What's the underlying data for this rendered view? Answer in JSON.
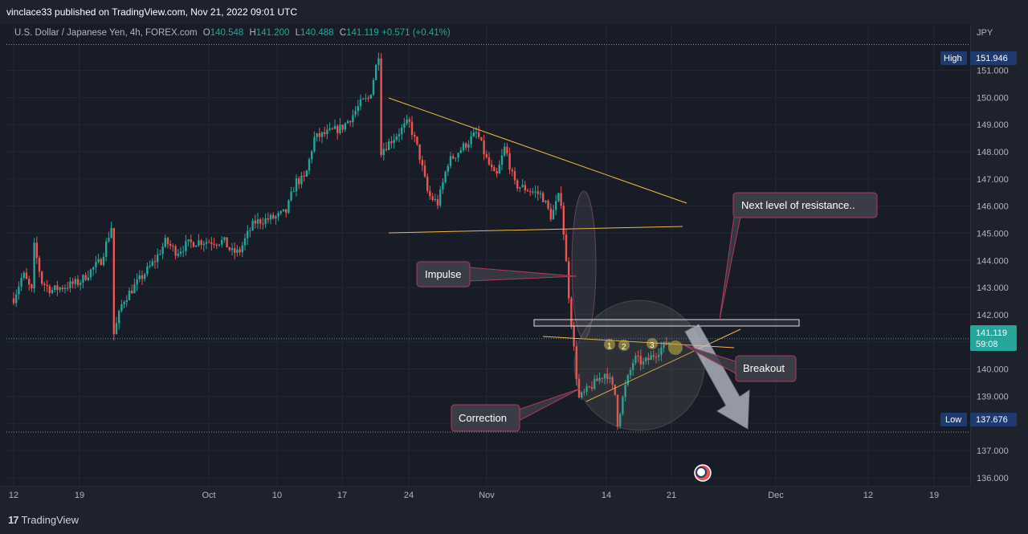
{
  "header": {
    "publisher": "vinclace33 published on TradingView.com, Nov 21, 2022 09:01 UTC"
  },
  "legend": {
    "symbol": "U.S. Dollar / Japanese Yen, 4h, FOREX.com",
    "open_key": "O",
    "open": "140.548",
    "high_key": "H",
    "high": "141.200",
    "low_key": "L",
    "low": "140.488",
    "close_key": "C",
    "close": "141.119",
    "change": "+0.571 (+0.41%)"
  },
  "currency": "JPY",
  "footer": {
    "brand": "TradingView",
    "brand_mark": "17"
  },
  "badges": {
    "high_label": "High",
    "high_value": "151.946",
    "low_label": "Low",
    "low_value": "137.676",
    "last_price": "141.119",
    "countdown": "59:08"
  },
  "annotations": {
    "resistance": "Next level of resistance..",
    "impulse": "Impulse",
    "breakout": "Breakout",
    "correction": "Correction",
    "wave_labels": [
      "1",
      "2",
      "3"
    ]
  },
  "colors": {
    "up": "#26a69a",
    "down": "#ef5350",
    "trendline": "#f5b942",
    "callout_border": "#b03a5a",
    "callout_bg": "#3a3d48",
    "badge_blue": "#1e3a6e",
    "last_green": "#26a69a"
  },
  "chart_data": {
    "type": "candlestick",
    "title": "U.S. Dollar / Japanese Yen, 4h, FOREX.com",
    "y_ticks": [
      "151.000",
      "150.000",
      "149.000",
      "148.000",
      "147.000",
      "146.000",
      "145.000",
      "144.000",
      "143.000",
      "142.000",
      "141.000",
      "140.000",
      "139.000",
      "138.000",
      "137.000",
      "136.000"
    ],
    "y_tick_values": [
      151,
      150,
      149,
      148,
      147,
      146,
      145,
      144,
      143,
      142,
      141,
      140,
      139,
      138,
      137,
      136
    ],
    "x_ticks": [
      "12",
      "19",
      "Oct",
      "10",
      "17",
      "24",
      "Nov",
      "14",
      "21",
      "Dec",
      "12",
      "19"
    ],
    "x_tick_dates": [
      "2022-09-12",
      "2022-09-19",
      "2022-10-01",
      "2022-10-10",
      "2022-10-17",
      "2022-10-24",
      "2022-11-01",
      "2022-11-14",
      "2022-11-21",
      "2022-12-01",
      "2022-12-12",
      "2022-12-19"
    ],
    "ylim": [
      135.7,
      152.7
    ],
    "high": 151.946,
    "low": 137.676,
    "last": 141.119,
    "path": [
      [
        "2022-09-12",
        142.6
      ],
      [
        "2022-09-13",
        143.5
      ],
      [
        "2022-09-14",
        142.8
      ],
      [
        "2022-09-14",
        144.8
      ],
      [
        "2022-09-15",
        143.2
      ],
      [
        "2022-09-16",
        142.9
      ],
      [
        "2022-09-19",
        143.2
      ],
      [
        "2022-09-20",
        143.6
      ],
      [
        "2022-09-21",
        144.0
      ],
      [
        "2022-09-22",
        145.3
      ],
      [
        "2022-09-22",
        141.0
      ],
      [
        "2022-09-23",
        142.5
      ],
      [
        "2022-09-26",
        144.0
      ],
      [
        "2022-09-27",
        144.7
      ],
      [
        "2022-09-28",
        144.3
      ],
      [
        "2022-09-29",
        144.6
      ],
      [
        "2022-09-30",
        144.7
      ],
      [
        "2022-10-03",
        144.7
      ],
      [
        "2022-10-04",
        144.3
      ],
      [
        "2022-10-05",
        144.3
      ],
      [
        "2022-10-06",
        144.9
      ],
      [
        "2022-10-07",
        145.4
      ],
      [
        "2022-10-10",
        145.6
      ],
      [
        "2022-10-11",
        145.8
      ],
      [
        "2022-10-12",
        146.9
      ],
      [
        "2022-10-13",
        147.0
      ],
      [
        "2022-10-14",
        148.5
      ],
      [
        "2022-10-17",
        148.9
      ],
      [
        "2022-10-18",
        149.3
      ],
      [
        "2022-10-19",
        149.8
      ],
      [
        "2022-10-20",
        150.0
      ],
      [
        "2022-10-20",
        150.2
      ],
      [
        "2022-10-21",
        151.9
      ],
      [
        "2022-10-21",
        148.0
      ],
      [
        "2022-10-24",
        149.1
      ],
      [
        "2022-10-25",
        148.0
      ],
      [
        "2022-10-26",
        146.4
      ],
      [
        "2022-10-27",
        146.1
      ],
      [
        "2022-10-28",
        147.6
      ],
      [
        "2022-10-31",
        148.7
      ],
      [
        "2022-11-01",
        147.7
      ],
      [
        "2022-11-02",
        147.0
      ],
      [
        "2022-11-03",
        148.2
      ],
      [
        "2022-11-04",
        146.8
      ],
      [
        "2022-11-07",
        146.4
      ],
      [
        "2022-11-08",
        145.6
      ],
      [
        "2022-11-09",
        146.5
      ],
      [
        "2022-11-10",
        142.4
      ],
      [
        "2022-11-11",
        138.9
      ],
      [
        "2022-11-14",
        139.9
      ],
      [
        "2022-11-15",
        139.0
      ],
      [
        "2022-11-15",
        137.7
      ],
      [
        "2022-11-16",
        139.3
      ],
      [
        "2022-11-17",
        140.4
      ],
      [
        "2022-11-18",
        140.2
      ],
      [
        "2022-11-21",
        141.1
      ]
    ]
  }
}
